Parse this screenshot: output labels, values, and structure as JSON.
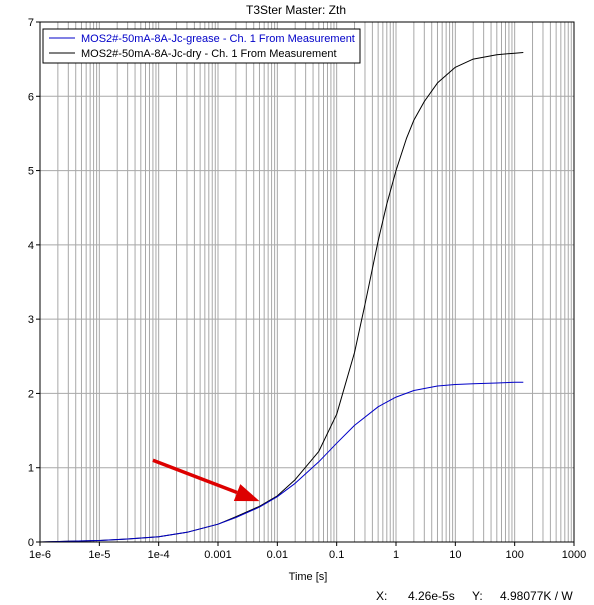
{
  "chart_data": {
    "type": "line",
    "title": "T3Ster Master: Zth",
    "xlabel": "Time [s]",
    "ylabel": "",
    "xscale": "log",
    "xlim": [
      1e-06,
      1000
    ],
    "ylim": [
      0,
      7
    ],
    "grid": true,
    "legend_position": "top-left",
    "x_ticks": [
      "1e-6",
      "1e-5",
      "1e-4",
      "0.001",
      "0.01",
      "0.1",
      "1",
      "10",
      "100",
      "1000"
    ],
    "y_ticks": [
      "0",
      "1",
      "2",
      "3",
      "4",
      "5",
      "6",
      "7"
    ],
    "series": [
      {
        "name": "MOS2#-50mA-8A-Jc-grease - Ch. 1 From Measurement",
        "color": "#0000c8",
        "x": [
          1e-06,
          3e-06,
          1e-05,
          3e-05,
          0.0001,
          0.0003,
          0.001,
          0.002,
          0.005,
          0.01,
          0.02,
          0.05,
          0.1,
          0.2,
          0.5,
          1,
          2,
          5,
          10,
          20,
          50,
          100,
          140
        ],
        "y": [
          0.0,
          0.01,
          0.02,
          0.04,
          0.07,
          0.13,
          0.24,
          0.33,
          0.47,
          0.61,
          0.79,
          1.08,
          1.33,
          1.57,
          1.82,
          1.95,
          2.04,
          2.1,
          2.12,
          2.13,
          2.14,
          2.15,
          2.15
        ]
      },
      {
        "name": "MOS2#-50mA-8A-Jc-dry - Ch. 1 From Measurement",
        "color": "#000000",
        "x": [
          1e-06,
          3e-06,
          1e-05,
          3e-05,
          0.0001,
          0.0003,
          0.001,
          0.002,
          0.005,
          0.01,
          0.02,
          0.05,
          0.1,
          0.2,
          0.3,
          0.5,
          0.7,
          1,
          1.5,
          2,
          3,
          5,
          10,
          20,
          50,
          100,
          140
        ],
        "y": [
          0.0,
          0.01,
          0.02,
          0.04,
          0.07,
          0.13,
          0.24,
          0.34,
          0.48,
          0.62,
          0.84,
          1.22,
          1.72,
          2.55,
          3.2,
          4.05,
          4.55,
          5.0,
          5.43,
          5.68,
          5.93,
          6.18,
          6.39,
          6.5,
          6.56,
          6.58,
          6.59
        ]
      }
    ],
    "annotations": [
      {
        "type": "arrow",
        "color": "#dd0000",
        "from": [
          8e-05,
          1.1
        ],
        "to": [
          0.005,
          0.55
        ]
      }
    ]
  },
  "status": {
    "x_label": "X:",
    "x_value": "4.26e-5s",
    "y_label": "Y:",
    "y_value": "4.98077K / W"
  }
}
